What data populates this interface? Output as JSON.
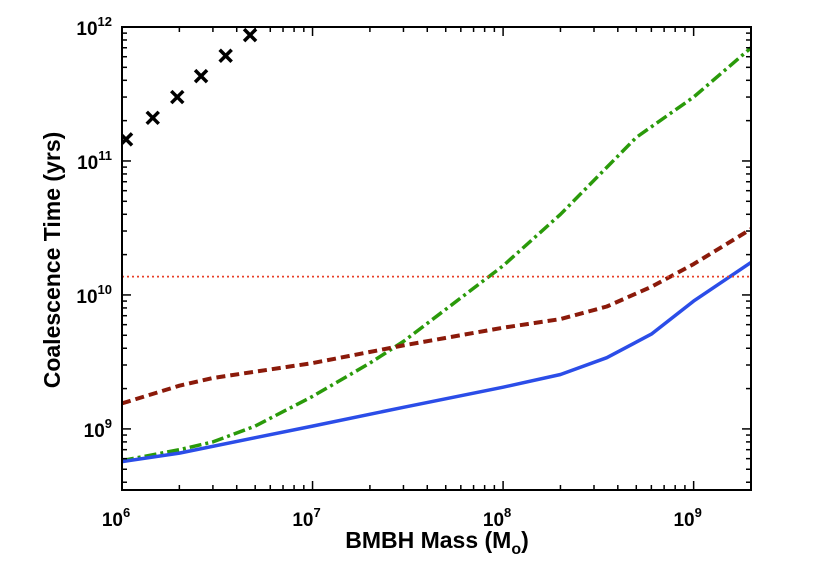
{
  "chart_data": {
    "type": "line",
    "xscale": "log",
    "yscale": "log",
    "xlim": [
      1000000,
      2000000000
    ],
    "ylim": [
      350000000,
      1000000000000
    ],
    "xlabel": {
      "main": "BMBH Mass (M",
      "sub": "o",
      "close": ")"
    },
    "ylabel": "Coalescence Time (yrs)",
    "xticks": [
      {
        "value": 1000000,
        "base": "10",
        "exp": "6"
      },
      {
        "value": 10000000,
        "base": "10",
        "exp": "7"
      },
      {
        "value": 100000000,
        "base": "10",
        "exp": "8"
      },
      {
        "value": 1000000000,
        "base": "10",
        "exp": "9"
      }
    ],
    "yticks": [
      {
        "value": 1000000000,
        "base": "10",
        "exp": "9"
      },
      {
        "value": 10000000000,
        "base": "10",
        "exp": "10"
      },
      {
        "value": 100000000000,
        "base": "10",
        "exp": "11"
      },
      {
        "value": 1000000000000,
        "base": "10",
        "exp": "12"
      }
    ],
    "series": [
      {
        "name": "markers-x",
        "style": "marker-x",
        "color": "#000000",
        "points": [
          [
            1050000,
            145000000000
          ],
          [
            1450000,
            210000000000
          ],
          [
            1950000,
            300000000000
          ],
          [
            2600000,
            430000000000
          ],
          [
            3500000,
            610000000000
          ],
          [
            4700000,
            870000000000
          ]
        ]
      },
      {
        "name": "green-dashdot",
        "style": "dashdot",
        "color": "#2a9a0a",
        "points": [
          [
            1000000,
            580000000
          ],
          [
            2000000,
            700000000
          ],
          [
            3000000,
            800000000
          ],
          [
            5000000,
            1050000000
          ],
          [
            10000000,
            1750000000
          ],
          [
            20000000,
            3100000000
          ],
          [
            30000000,
            4500000000
          ],
          [
            50000000,
            7800000000
          ],
          [
            100000000,
            16500000000
          ],
          [
            200000000,
            40000000000
          ],
          [
            500000000,
            150000000000
          ],
          [
            1000000000,
            300000000000
          ],
          [
            2000000000,
            700000000000
          ]
        ]
      },
      {
        "name": "brown-dashed",
        "style": "dashed",
        "color": "#8b1a0a",
        "points": [
          [
            1000000,
            1550000000
          ],
          [
            2000000,
            2100000000
          ],
          [
            3000000,
            2400000000
          ],
          [
            10000000,
            3100000000
          ],
          [
            30000000,
            4200000000
          ],
          [
            100000000,
            5700000000
          ],
          [
            200000000,
            6600000000
          ],
          [
            350000000,
            8200000000
          ],
          [
            600000000,
            11500000000
          ],
          [
            1000000000,
            17000000000
          ],
          [
            2000000000,
            31000000000
          ]
        ]
      },
      {
        "name": "blue-solid",
        "style": "solid",
        "color": "#2b4de8",
        "points": [
          [
            1000000,
            570000000
          ],
          [
            2000000,
            660000000
          ],
          [
            5000000,
            860000000
          ],
          [
            10000000,
            1050000000
          ],
          [
            30000000,
            1450000000
          ],
          [
            100000000,
            2050000000
          ],
          [
            200000000,
            2550000000
          ],
          [
            350000000,
            3400000000
          ],
          [
            600000000,
            5100000000
          ],
          [
            1000000000,
            9000000000
          ],
          [
            2000000000,
            17500000000
          ]
        ]
      },
      {
        "name": "red-dotted-hline",
        "style": "dotted",
        "color": "#e8402a",
        "points": [
          [
            1000000,
            13700000000
          ],
          [
            2000000000,
            13700000000
          ]
        ]
      }
    ]
  }
}
